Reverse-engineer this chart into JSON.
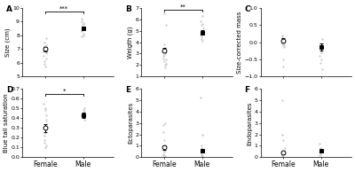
{
  "panels": [
    {
      "label": "A",
      "ylabel": "Size (cm)",
      "ylim": [
        5,
        10
      ],
      "yticks": [
        5,
        6,
        7,
        8,
        9,
        10
      ],
      "female_jitter": [
        7.5,
        7.3,
        7.2,
        7.0,
        6.9,
        6.8,
        6.7,
        6.5,
        6.3,
        6.1,
        5.9,
        5.7,
        7.8,
        7.1
      ],
      "male_jitter": [
        9.0,
        8.9,
        8.8,
        8.6,
        8.5,
        8.3,
        8.1,
        7.9,
        9.2,
        8.4,
        8.7,
        8.0
      ],
      "female_mean": 7.0,
      "female_se": 0.18,
      "male_mean": 8.5,
      "male_se": 0.15,
      "sig_text": "***",
      "sig_y": 9.75,
      "row": 0,
      "col": 0
    },
    {
      "label": "B",
      "ylabel": "Weigth (g)",
      "ylim": [
        1,
        7
      ],
      "yticks": [
        1,
        2,
        3,
        4,
        5,
        6,
        7
      ],
      "female_jitter": [
        3.8,
        3.5,
        3.3,
        3.1,
        3.0,
        2.8,
        2.6,
        2.5,
        2.3,
        2.1,
        2.0,
        1.8,
        3.2,
        2.9,
        6.5,
        5.5
      ],
      "male_jitter": [
        5.5,
        5.2,
        5.0,
        4.8,
        4.5,
        4.3,
        6.3,
        5.8,
        4.7,
        4.1,
        5.6
      ],
      "female_mean": 3.3,
      "female_se": 0.22,
      "male_mean": 4.85,
      "male_se": 0.22,
      "sig_text": "**",
      "sig_y": 6.85,
      "row": 0,
      "col": 1
    },
    {
      "label": "C",
      "ylabel": "Size-corrected mass",
      "ylim": [
        -1.0,
        1.0
      ],
      "yticks": [
        -1.0,
        -0.5,
        0.0,
        0.5,
        1.0
      ],
      "female_jitter": [
        0.15,
        0.1,
        0.08,
        0.05,
        0.02,
        -0.02,
        -0.05,
        -0.08,
        -0.1,
        0.2,
        0.12,
        -0.15,
        -0.7,
        -0.5
      ],
      "male_jitter": [
        -0.05,
        -0.1,
        -0.15,
        -0.2,
        -0.3,
        -0.5,
        -0.8,
        -0.6,
        0.1,
        -0.4,
        -0.25
      ],
      "female_mean": 0.05,
      "female_se": 0.06,
      "male_mean": -0.15,
      "male_se": 0.1,
      "sig_text": "",
      "sig_y": 0.9,
      "row": 0,
      "col": 2
    },
    {
      "label": "D",
      "ylabel": "Blue tail saturation",
      "ylim": [
        0.0,
        0.7
      ],
      "yticks": [
        0.0,
        0.1,
        0.2,
        0.3,
        0.4,
        0.5,
        0.6,
        0.7
      ],
      "female_jitter": [
        0.55,
        0.5,
        0.48,
        0.43,
        0.38,
        0.33,
        0.3,
        0.28,
        0.25,
        0.22,
        0.18,
        0.15,
        0.12,
        0.1
      ],
      "male_jitter": [
        0.5,
        0.47,
        0.45,
        0.43,
        0.41,
        0.38,
        0.43,
        0.48
      ],
      "female_mean": 0.3,
      "female_se": 0.04,
      "male_mean": 0.43,
      "male_se": 0.025,
      "sig_text": "*",
      "sig_y": 0.645,
      "row": 1,
      "col": 0
    },
    {
      "label": "E",
      "ylabel": "Ectoparasites",
      "ylim": [
        0,
        6
      ],
      "yticks": [
        0,
        1,
        2,
        3,
        4,
        5,
        6
      ],
      "female_jitter": [
        0.9,
        0.8,
        0.6,
        0.5,
        0.3,
        0.2,
        0.1,
        3.0,
        2.2,
        2.8,
        1.5
      ],
      "male_jitter": [
        0.8,
        0.5,
        0.3,
        0.2,
        0.1,
        2.0,
        1.0,
        0.6,
        5.2
      ],
      "female_mean": 0.85,
      "female_se": 0.2,
      "male_mean": 0.55,
      "male_se": 0.15,
      "sig_text": "",
      "sig_y": 5.5,
      "row": 1,
      "col": 1
    },
    {
      "label": "F",
      "ylabel": "Endoparasites",
      "ylim": [
        0,
        6
      ],
      "yticks": [
        0,
        1,
        2,
        3,
        4,
        5,
        6
      ],
      "female_jitter": [
        0.5,
        0.4,
        0.3,
        0.2,
        0.1,
        0.8,
        5.0,
        1.5,
        2.0,
        0.6
      ],
      "male_jitter": [
        0.6,
        0.5,
        0.4,
        0.3,
        0.8,
        1.2,
        0.2
      ],
      "female_mean": 0.38,
      "female_se": 0.12,
      "male_mean": 0.55,
      "male_se": 0.1,
      "sig_text": "",
      "sig_y": 5.5,
      "row": 1,
      "col": 2
    }
  ],
  "female_x": 1,
  "male_x": 2,
  "xlim": [
    0.4,
    2.8
  ],
  "xtick_labels": [
    "Female",
    "Male"
  ],
  "jitter_color": "#c8c8c8",
  "jitter_size": 3,
  "jitter_spread": 0.04,
  "mean_color_female": "white",
  "mean_color_male": "black",
  "marker_size_circle": 3.5,
  "marker_size_square": 3.0,
  "background_color": "white",
  "tick_fontsize": 4.5,
  "ylabel_fontsize": 5,
  "xlabel_fontsize": 5.5,
  "label_fontsize": 6.5,
  "sig_fontsize": 5,
  "errorbar_lw": 0.7,
  "capsize": 1.5,
  "capthick": 0.7
}
